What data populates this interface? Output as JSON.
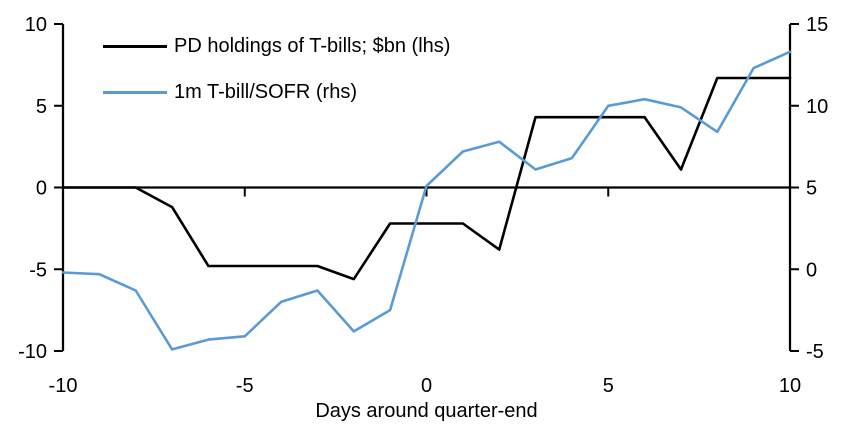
{
  "chart_data": {
    "type": "line",
    "title": "",
    "xlabel": "Days around quarter-end",
    "x": [
      -10,
      -9,
      -8,
      -7,
      -6,
      -5,
      -4,
      -3,
      -2,
      -1,
      0,
      1,
      2,
      3,
      4,
      5,
      6,
      7,
      8,
      9,
      10
    ],
    "x_range": [
      -10,
      10
    ],
    "x_ticks": [
      -10,
      -5,
      0,
      5,
      10
    ],
    "left_axis": {
      "range": [
        -10,
        10
      ],
      "ticks": [
        10,
        5,
        0,
        -5,
        -10
      ]
    },
    "right_axis": {
      "range": [
        -5,
        15
      ],
      "ticks": [
        15,
        10,
        5,
        0,
        -5
      ]
    },
    "series": [
      {
        "name": "PD holdings of T-bills; $bn (lhs)",
        "axis": "left",
        "color": "#000000",
        "values": [
          0,
          0,
          0,
          -1.2,
          -4.8,
          -4.8,
          -4.8,
          -4.8,
          -5.6,
          -2.2,
          -2.2,
          -2.2,
          -3.8,
          4.3,
          4.3,
          4.3,
          4.3,
          1.1,
          6.7,
          6.7,
          6.7
        ]
      },
      {
        "name": "1m T-bill/SOFR (rhs)",
        "axis": "right",
        "color": "#5B9BD5",
        "values": [
          -0.2,
          -0.3,
          -1.3,
          -4.9,
          -4.3,
          -4.1,
          -2.0,
          -1.3,
          -3.8,
          -2.5,
          5.1,
          7.2,
          7.8,
          6.1,
          6.8,
          10.0,
          10.4,
          9.9,
          8.4,
          12.3,
          13.3
        ]
      }
    ],
    "legend_position": "top-left",
    "grid": false,
    "axis_color": "#000000"
  }
}
